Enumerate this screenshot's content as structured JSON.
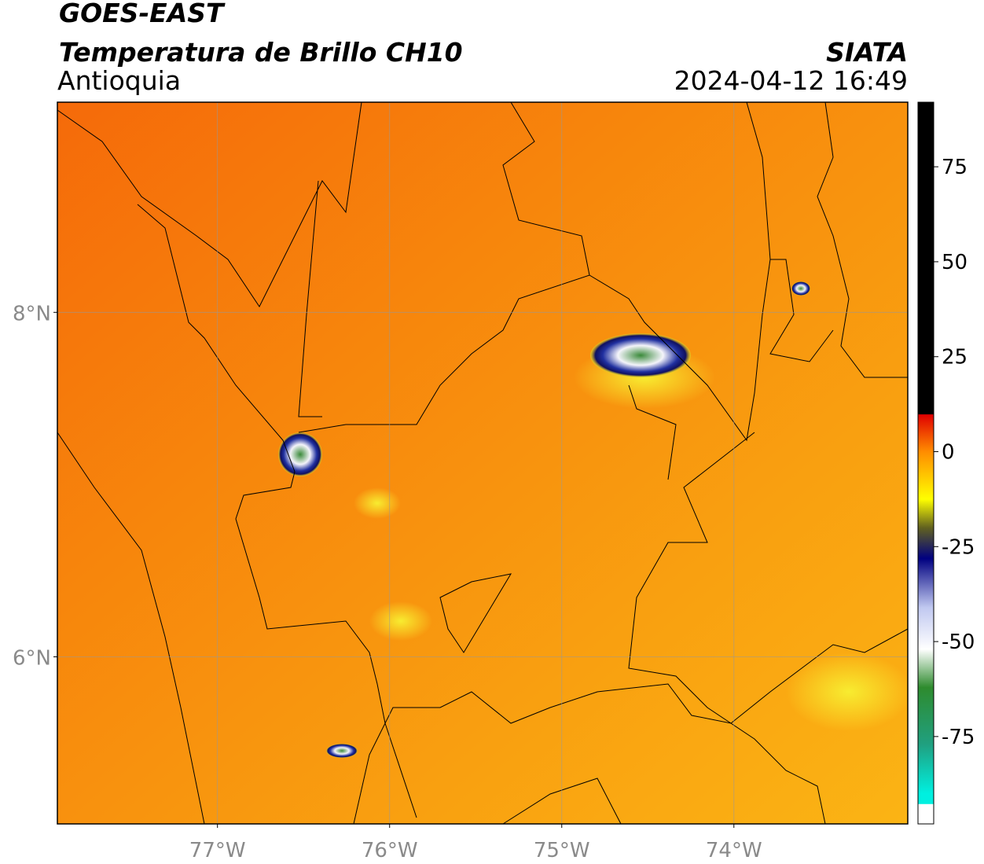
{
  "header": {
    "title": "GOES-EAST",
    "subtitle": "Temperatura de Brillo CH10",
    "region": "Antioquia",
    "source": "SIATA",
    "datetime": "2024-04-12 16:49"
  },
  "map": {
    "xlim": [
      -77.93,
      -72.99
    ],
    "ylim": [
      5.03,
      9.22
    ],
    "xticks": [
      {
        "value": -77,
        "label": "77°W"
      },
      {
        "value": -76,
        "label": "76°W"
      },
      {
        "value": -75,
        "label": "75°W"
      },
      {
        "value": -74,
        "label": "74°W"
      }
    ],
    "yticks": [
      {
        "value": 8,
        "label": "8°N"
      },
      {
        "value": 6,
        "label": "6°N"
      }
    ],
    "grid": true
  },
  "colorbar": {
    "clim": [
      -98,
      92
    ],
    "ticks": [
      75,
      50,
      25,
      0,
      -25,
      -50,
      -75
    ]
  }
}
